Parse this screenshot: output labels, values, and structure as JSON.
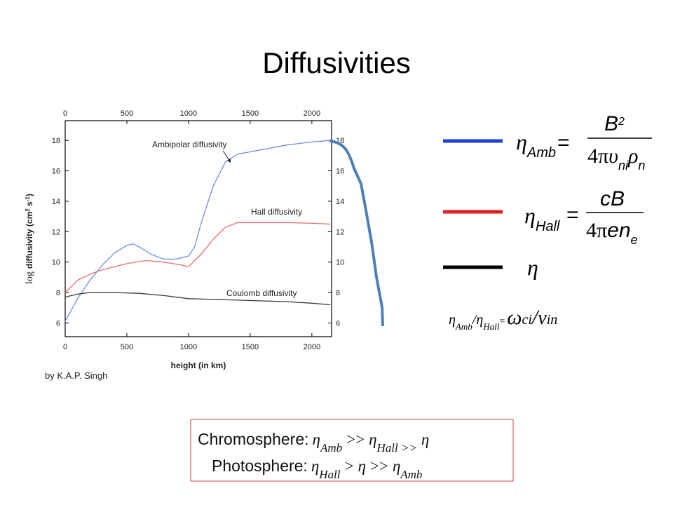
{
  "title": "Diffusivities",
  "credit": "by K.A.P. Singh",
  "chart_data": {
    "type": "line",
    "xlabel": "height (in km)",
    "ylabel": [
      "log",
      "diffusivity (cm",
      "2",
      " s",
      "-1",
      ")"
    ],
    "xlim": [
      0,
      2160
    ],
    "ylim": [
      5.1,
      19.3
    ],
    "xticks": [
      0,
      500,
      1000,
      1500,
      2000
    ],
    "x2ticks": [
      0,
      500,
      1000,
      1500,
      2000
    ],
    "yticks": [
      6,
      8,
      10,
      12,
      14,
      16,
      18
    ],
    "y2ticks": [
      6,
      8,
      10,
      12,
      14,
      16,
      18
    ],
    "series": [
      {
        "name": "Ambipolar diffusivity",
        "color": "#6d8ee8",
        "x": [
          0,
          100,
          200,
          300,
          400,
          500,
          550,
          600,
          700,
          800,
          900,
          1000,
          1050,
          1100,
          1200,
          1300,
          1400,
          1600,
          1800,
          2000,
          2150
        ],
        "values": [
          6.1,
          7.6,
          8.8,
          9.8,
          10.6,
          11.1,
          11.2,
          11.0,
          10.5,
          10.2,
          10.2,
          10.4,
          11.0,
          12.5,
          15.0,
          16.6,
          17.1,
          17.4,
          17.7,
          17.9,
          18.0
        ]
      },
      {
        "name": "Hall diffusivity",
        "color": "#ec6b6b",
        "x": [
          0,
          100,
          200,
          300,
          400,
          500,
          650,
          800,
          950,
          1000,
          1100,
          1200,
          1300,
          1400,
          1600,
          1800,
          2000,
          2150
        ],
        "values": [
          8.0,
          8.8,
          9.2,
          9.5,
          9.7,
          9.9,
          10.1,
          10.0,
          9.8,
          9.7,
          10.5,
          11.5,
          12.3,
          12.6,
          12.6,
          12.6,
          12.55,
          12.5
        ]
      },
      {
        "name": "Coulomb diffusivity",
        "color": "#3a3a3a",
        "x": [
          0,
          100,
          200,
          400,
          600,
          800,
          1000,
          1200,
          1400,
          1600,
          1800,
          2000,
          2150
        ],
        "values": [
          7.7,
          7.9,
          8.0,
          8.0,
          7.95,
          7.8,
          7.6,
          7.55,
          7.5,
          7.45,
          7.4,
          7.3,
          7.2
        ]
      }
    ]
  },
  "legend_colors": [
    "#1f3fd6",
    "#e02020",
    "#000000"
  ],
  "equations": [
    {
      "lhs": "η",
      "lhs_sub": "Amb",
      "eq": "=",
      "num": [
        "B",
        "2"
      ],
      "den": [
        "4π",
        "υ",
        "ni",
        "ρ",
        "n"
      ]
    },
    {
      "lhs": "η",
      "lhs_sub": "Hall",
      "eq": "=",
      "num": [
        "cB"
      ],
      "den": [
        "4π",
        "e",
        "n",
        "e"
      ]
    },
    {
      "lhs": "η"
    }
  ],
  "ratio": [
    "η",
    "Amb",
    "/",
    "η",
    "Hall",
    "=",
    "ω",
    "ci",
    "/",
    "ν",
    "in"
  ],
  "summary": [
    [
      "Chromosphere:",
      "η",
      "Amb",
      ">>",
      "η",
      "Hall >>",
      "η"
    ],
    [
      "Photosphere:",
      "η",
      "Hall",
      ">",
      "η",
      ">>",
      "η",
      "Amb"
    ]
  ]
}
